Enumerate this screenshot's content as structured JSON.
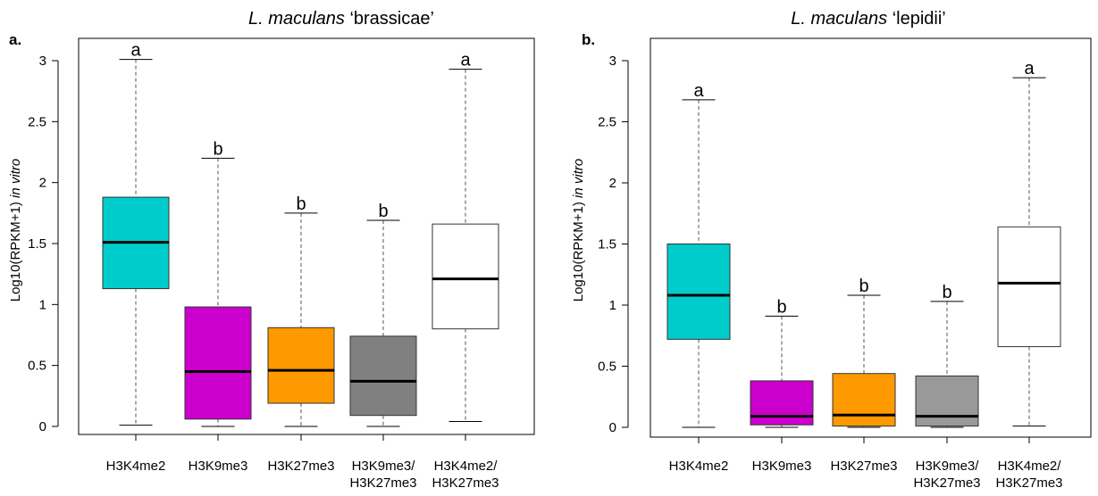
{
  "chart_data": [
    {
      "type": "boxplot",
      "panel": "a.",
      "title_species": "L. maculans",
      "title_strain": "‘brassicae’",
      "ylabel_main": "Log10(RPKM+1) ",
      "ylabel_italic": "in vitro",
      "ylim": [
        0,
        3
      ],
      "yticks": [
        "0",
        "0.5",
        "1",
        "1.5",
        "2",
        "2.5",
        "3"
      ],
      "categories": [
        [
          "H3K4me2"
        ],
        [
          "H3K9me3"
        ],
        [
          "H3K27me3"
        ],
        [
          "H3K9me3/",
          "H3K27me3"
        ],
        [
          "H3K4me2/",
          "H3K27me3"
        ]
      ],
      "boxes": [
        {
          "min": 0.01,
          "q1": 1.13,
          "median": 1.51,
          "q3": 1.88,
          "max": 3.01,
          "color": "#00cccc",
          "letter": "a"
        },
        {
          "min": 0.0,
          "q1": 0.06,
          "median": 0.45,
          "q3": 0.98,
          "max": 2.2,
          "color": "#cc00cc",
          "letter": "b"
        },
        {
          "min": 0.0,
          "q1": 0.19,
          "median": 0.46,
          "q3": 0.81,
          "max": 1.75,
          "color": "#ff9900",
          "letter": "b"
        },
        {
          "min": 0.0,
          "q1": 0.09,
          "median": 0.37,
          "q3": 0.74,
          "max": 1.69,
          "color": "#808080",
          "letter": "b"
        },
        {
          "min": 0.04,
          "q1": 0.8,
          "median": 1.21,
          "q3": 1.66,
          "max": 2.93,
          "color": "#ffffff",
          "letter": "a"
        }
      ]
    },
    {
      "type": "boxplot",
      "panel": "b.",
      "title_species": "L. maculans",
      "title_strain": "‘lepidii’",
      "ylabel_main": "Log10(RPKM+1) ",
      "ylabel_italic": "in vitro",
      "ylim": [
        0,
        3
      ],
      "yticks": [
        "0",
        "0.5",
        "1",
        "1.5",
        "2",
        "2.5",
        "3"
      ],
      "categories": [
        [
          "H3K4me2"
        ],
        [
          "H3K9me3"
        ],
        [
          "H3K27me3"
        ],
        [
          "H3K9me3/",
          "H3K27me3"
        ],
        [
          "H3K4me2/",
          "H3K27me3"
        ]
      ],
      "boxes": [
        {
          "min": 0.0,
          "q1": 0.72,
          "median": 1.08,
          "q3": 1.5,
          "max": 2.68,
          "color": "#00cccc",
          "letter": "a"
        },
        {
          "min": 0.0,
          "q1": 0.02,
          "median": 0.09,
          "q3": 0.38,
          "max": 0.91,
          "color": "#cc00cc",
          "letter": "b"
        },
        {
          "min": 0.0,
          "q1": 0.01,
          "median": 0.1,
          "q3": 0.44,
          "max": 1.08,
          "color": "#ff9900",
          "letter": "b"
        },
        {
          "min": 0.0,
          "q1": 0.01,
          "median": 0.09,
          "q3": 0.42,
          "max": 1.03,
          "color": "#999999",
          "letter": "b"
        },
        {
          "min": 0.01,
          "q1": 0.66,
          "median": 1.18,
          "q3": 1.64,
          "max": 2.86,
          "color": "#ffffff",
          "letter": "a"
        }
      ]
    }
  ]
}
